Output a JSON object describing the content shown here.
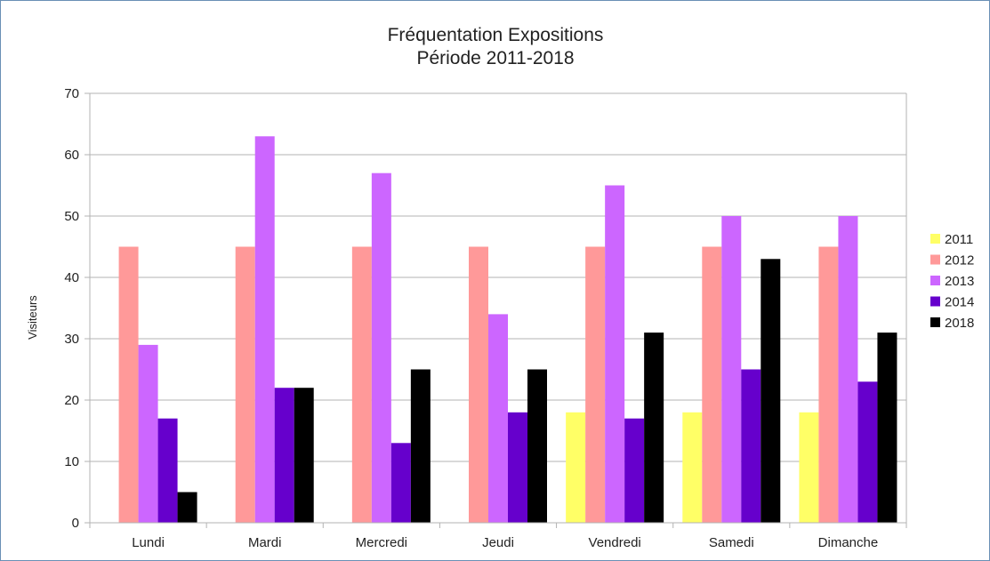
{
  "chart_data": {
    "type": "bar",
    "title": "Fréquentation Expositions",
    "subtitle": "Période 2011-2018",
    "xlabel": "",
    "ylabel": "Visiteurs",
    "ylim": [
      0,
      70
    ],
    "ytick_step": 10,
    "grid": true,
    "legend_position": "right",
    "categories": [
      "Lundi",
      "Mardi",
      "Mercredi",
      "Jeudi",
      "Vendredi",
      "Samedi",
      "Dimanche"
    ],
    "series": [
      {
        "name": "2011",
        "color": "#ffff66",
        "values": [
          null,
          null,
          null,
          null,
          18,
          18,
          18
        ]
      },
      {
        "name": "2012",
        "color": "#ff9999",
        "values": [
          45,
          45,
          45,
          45,
          45,
          45,
          45
        ]
      },
      {
        "name": "2013",
        "color": "#cc66ff",
        "values": [
          29,
          63,
          57,
          34,
          55,
          50,
          50
        ]
      },
      {
        "name": "2014",
        "color": "#6600cc",
        "values": [
          17,
          22,
          13,
          18,
          17,
          25,
          23
        ]
      },
      {
        "name": "2018",
        "color": "#000000",
        "values": [
          5,
          22,
          25,
          25,
          31,
          43,
          31
        ]
      }
    ]
  }
}
